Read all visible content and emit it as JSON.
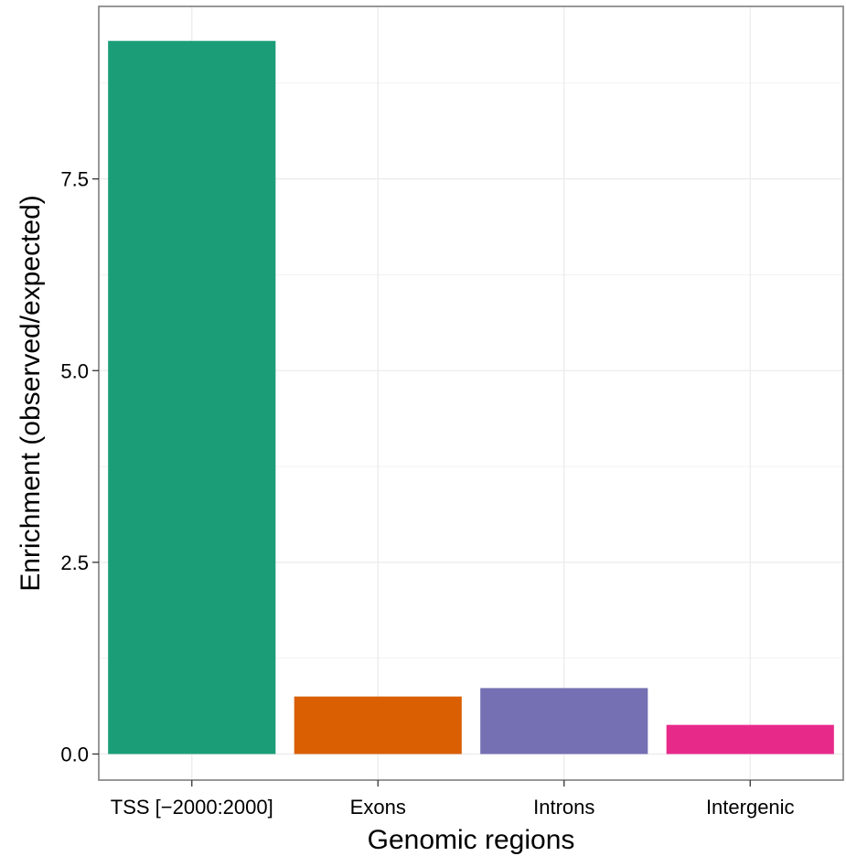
{
  "chart_data": {
    "type": "bar",
    "categories": [
      "TSS [−2000:2000]",
      "Exons",
      "Introns",
      "Intergenic"
    ],
    "values": [
      9.3,
      0.75,
      0.86,
      0.38
    ],
    "colors": [
      "#1b9e77",
      "#d95f02",
      "#7570b3",
      "#e7298a"
    ],
    "xlabel": "Genomic regions",
    "ylabel": "Enrichment (observed/expected)",
    "ylim": [
      -0.34,
      9.75
    ],
    "yticks": [
      0.0,
      2.5,
      5.0,
      7.5
    ],
    "ytick_labels": [
      "0.0",
      "2.5",
      "5.0",
      "7.5"
    ],
    "grid": true,
    "legend": "none"
  }
}
